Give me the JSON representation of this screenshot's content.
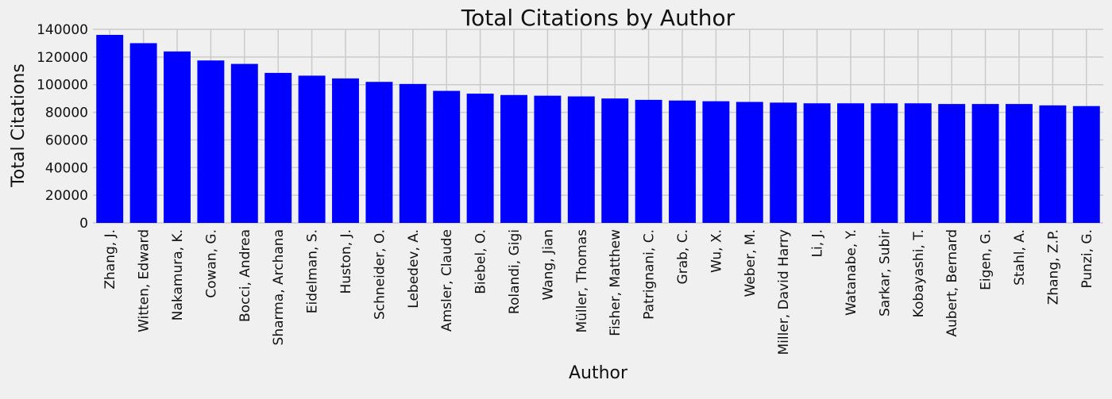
{
  "chart_data": {
    "type": "bar",
    "title": "Total Citations by Author",
    "xlabel": "Author",
    "ylabel": "Total Citations",
    "ylim": [
      0,
      140000
    ],
    "yticks": [
      "0",
      "20000",
      "40000",
      "60000",
      "80000",
      "100000",
      "120000",
      "140000"
    ],
    "grid": true,
    "bar_color": "#0000ff",
    "background_color": "#f0f0f0",
    "grid_color": "#cbcbcb",
    "categories": [
      "Zhang, J.",
      "Witten, Edward",
      "Nakamura, K.",
      "Cowan, G.",
      "Bocci, Andrea",
      "Sharma, Archana",
      "Eidelman, S.",
      "Huston, J.",
      "Schneider, O.",
      "Lebedev, A.",
      "Amsler, Claude",
      "Biebel, O.",
      "Rolandi, Gigi",
      "Wang, Jian",
      "Müller, Thomas",
      "Fisher, Matthew",
      "Patrignani, C.",
      "Grab, C.",
      "Wu, X.",
      "Weber, M.",
      "Miller, David Harry",
      "Li, J.",
      "Watanabe, Y.",
      "Sarkar, Subir",
      "Kobayashi, T.",
      "Aubert, Bernard",
      "Eigen, G.",
      "Stahl, A.",
      "Zhang, Z.P.",
      "Punzi, G."
    ],
    "values": [
      136000,
      130000,
      124000,
      117500,
      115000,
      108500,
      106500,
      104500,
      102000,
      100500,
      95500,
      93500,
      92500,
      92000,
      91500,
      90000,
      89000,
      88500,
      88000,
      87500,
      87000,
      86500,
      86500,
      86500,
      86500,
      86000,
      86000,
      86000,
      85000,
      84500
    ]
  }
}
